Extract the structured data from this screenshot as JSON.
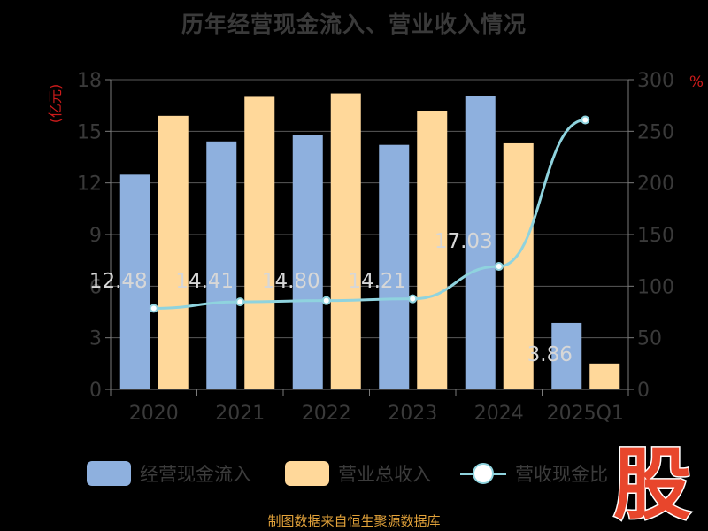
{
  "page": {
    "title": "历年经营现金流入、营业收入情况",
    "source": "制图数据来自恒生聚源数据库",
    "logo_text": "股"
  },
  "colors": {
    "background": "#000000",
    "cash_inflow": "#8eb0de",
    "revenue": "#ffd89a",
    "ratio_line": "#8fd3de",
    "axis_unit": "#cc1b1b",
    "grid": "#5a5a5a",
    "tick": "#7a7a7a",
    "data_label": "#d7d7d7",
    "logo": "#e8462c",
    "source": "#e2a23a"
  },
  "chart_data": {
    "type": "bar",
    "categories": [
      "2020",
      "2021",
      "2022",
      "2023",
      "2024",
      "2025Q1"
    ],
    "series": [
      {
        "name": "经营现金流入",
        "kind": "bar",
        "axis": "left",
        "values": [
          12.48,
          14.41,
          14.8,
          14.21,
          17.03,
          3.86
        ],
        "data_labels": [
          "12.48",
          "14.41",
          "14.80",
          "14.21",
          "17.03",
          "3.86"
        ]
      },
      {
        "name": "营业总收入",
        "kind": "bar",
        "axis": "left",
        "values": [
          15.9,
          17.0,
          17.2,
          16.2,
          14.3,
          1.5
        ]
      },
      {
        "name": "营收现金比",
        "kind": "line",
        "axis": "right",
        "values": [
          78.5,
          84.8,
          86.0,
          87.7,
          119.1,
          261.0
        ]
      }
    ],
    "y_left": {
      "unit": "(亿元)",
      "range": [
        0,
        18
      ],
      "ticks": [
        "0",
        "3",
        "6",
        "9",
        "12",
        "15",
        "18"
      ]
    },
    "y_right": {
      "unit": "%",
      "range": [
        0,
        300
      ],
      "ticks": [
        "0",
        "50",
        "100",
        "150",
        "200",
        "250",
        "300"
      ]
    },
    "grid": true,
    "legend_position": "bottom"
  }
}
